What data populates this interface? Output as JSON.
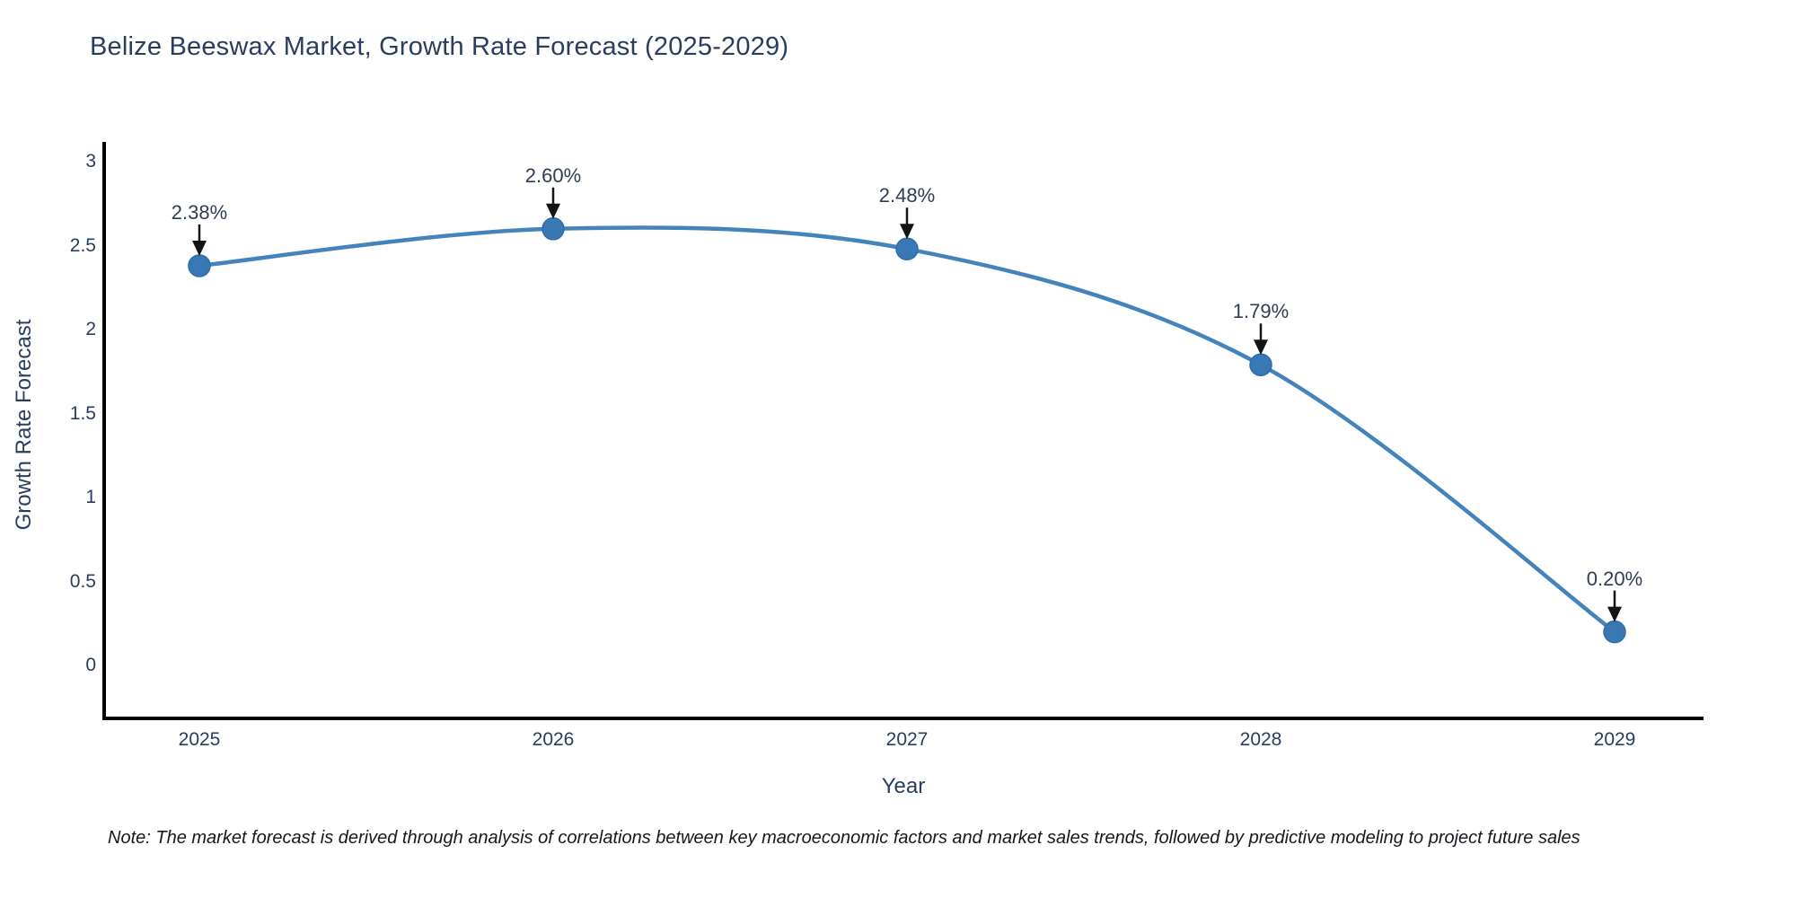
{
  "title": "Belize Beeswax Market, Growth Rate Forecast (2025-2029)",
  "note": "Note: The market forecast is derived through analysis of correlations between key macroeconomic factors and market sales trends, followed by predictive modeling to project future sales",
  "colors": {
    "line": "#4583bb",
    "marker": "#3a78b4",
    "marker_edge": "#2f6daa",
    "axis": "#000000",
    "arrow": "#141414",
    "text": "#2b3d5f"
  },
  "chart_data": {
    "type": "line",
    "curve": "spline",
    "title": "Belize Beeswax Market, Growth Rate Forecast (2025-2029)",
    "xlabel": "Year",
    "ylabel": "Growth Rate Forecast",
    "x": [
      2025,
      2026,
      2027,
      2028,
      2029
    ],
    "values": [
      2.38,
      2.6,
      2.48,
      1.79,
      0.2
    ],
    "point_labels": [
      "2.38%",
      "2.60%",
      "2.48%",
      "1.79%",
      "0.20%"
    ],
    "x_tick_labels": [
      "2025",
      "2026",
      "2027",
      "2028",
      "2029"
    ],
    "y_tick_values": [
      3,
      2.5,
      2,
      1.5,
      1,
      0.5,
      0
    ],
    "y_tick_labels": [
      "3",
      "2.5",
      "2",
      "1.5",
      "1",
      "0.5",
      "0"
    ],
    "ylim": [
      -0.32,
      3.1
    ],
    "grid": false,
    "legend": false,
    "annotations": "value labels with down arrows above each point"
  }
}
